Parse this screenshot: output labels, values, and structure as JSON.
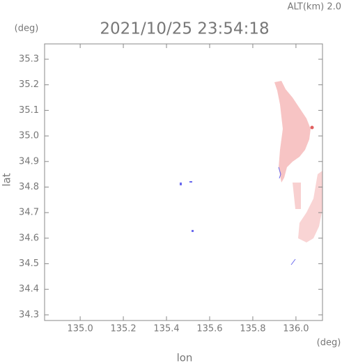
{
  "chart_data": {
    "type": "map",
    "title": "2021/10/25 23:54:18",
    "subtitle": "ALT(km) 2.0",
    "x_label": "lon",
    "y_label": "lat",
    "x_unit": "(deg)",
    "y_unit": "(deg)",
    "xlim": [
      134.835,
      136.123
    ],
    "ylim": [
      34.278,
      35.36
    ],
    "xticks": [
      {
        "value": 135,
        "label": "135.0"
      },
      135.2,
      135.4,
      135.6,
      135.8,
      {
        "value": 136,
        "label": "136.0"
      }
    ],
    "yticks": [
      34.3,
      34.4,
      34.5,
      34.6,
      34.7,
      34.8,
      34.9,
      {
        "value": 35,
        "label": "35.0"
      },
      35.1,
      35.2,
      35.3
    ]
  }
}
